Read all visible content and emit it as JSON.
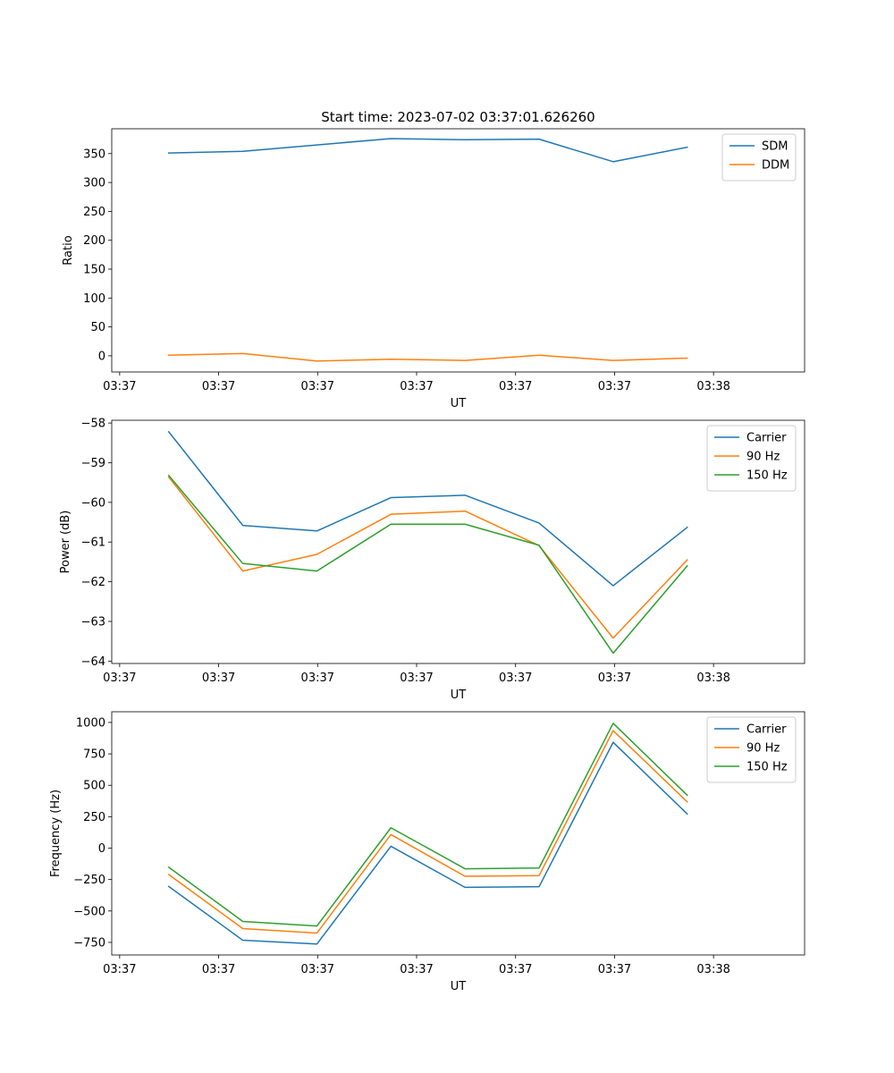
{
  "chart_data": [
    {
      "type": "line",
      "title": "Start time: 2023-07-02 03:37:01.626260",
      "xlabel": "UT",
      "ylabel": "Ratio",
      "x_tick_labels": [
        "03:37",
        "03:37",
        "03:37",
        "03:37",
        "03:37",
        "03:37",
        "03:38"
      ],
      "xlim": [
        0,
        6.08
      ],
      "x": [
        0.5,
        1.15,
        1.8,
        2.45,
        3.1,
        3.75,
        4.4,
        5.05
      ],
      "ylim": [
        -28,
        393
      ],
      "yticks": [
        0,
        50,
        100,
        150,
        200,
        250,
        300,
        350
      ],
      "legend": "top-right",
      "series": [
        {
          "name": "SDM",
          "color": "#1f77b4",
          "values": [
            351,
            354,
            365,
            376,
            374,
            375,
            336,
            361
          ]
        },
        {
          "name": "DDM",
          "color": "#ff7f0e",
          "values": [
            1,
            4,
            -9,
            -6,
            -8,
            1,
            -8,
            -4
          ]
        }
      ]
    },
    {
      "type": "line",
      "title": "",
      "xlabel": "UT",
      "ylabel": "Power (dB)",
      "x_tick_labels": [
        "03:37",
        "03:37",
        "03:37",
        "03:37",
        "03:37",
        "03:37",
        "03:38"
      ],
      "xlim": [
        0,
        6.08
      ],
      "x": [
        0.5,
        1.15,
        1.8,
        2.45,
        3.1,
        3.75,
        4.4,
        5.05
      ],
      "ylim": [
        -64.06,
        -57.93
      ],
      "yticks": [
        -64,
        -63,
        -62,
        -61,
        -60,
        -59,
        -58
      ],
      "legend": "top-right",
      "series": [
        {
          "name": "Carrier",
          "color": "#1f77b4",
          "values": [
            -58.22,
            -60.58,
            -60.72,
            -59.88,
            -59.82,
            -60.52,
            -62.1,
            -60.63
          ]
        },
        {
          "name": "90 Hz",
          "color": "#ff7f0e",
          "values": [
            -59.36,
            -61.73,
            -61.31,
            -60.3,
            -60.22,
            -61.09,
            -63.42,
            -61.45
          ]
        },
        {
          "name": "150 Hz",
          "color": "#2ca02c",
          "values": [
            -59.32,
            -61.54,
            -61.73,
            -60.55,
            -60.55,
            -61.08,
            -63.8,
            -61.6
          ]
        }
      ]
    },
    {
      "type": "line",
      "title": "",
      "xlabel": "UT",
      "ylabel": "Frequency (Hz)",
      "x_tick_labels": [
        "03:37",
        "03:37",
        "03:37",
        "03:37",
        "03:37",
        "03:37",
        "03:38"
      ],
      "xlim": [
        0,
        6.08
      ],
      "x": [
        0.5,
        1.15,
        1.8,
        2.45,
        3.1,
        3.75,
        4.4,
        5.05
      ],
      "ylim": [
        -850,
        1085
      ],
      "yticks": [
        -750,
        -500,
        -250,
        0,
        250,
        500,
        750,
        1000
      ],
      "legend": "top-right",
      "series": [
        {
          "name": "Carrier",
          "color": "#1f77b4",
          "values": [
            -305,
            -733,
            -763,
            15,
            -312,
            -307,
            842,
            272
          ]
        },
        {
          "name": "90 Hz",
          "color": "#ff7f0e",
          "values": [
            -210,
            -640,
            -676,
            108,
            -224,
            -219,
            935,
            368
          ]
        },
        {
          "name": "150 Hz",
          "color": "#2ca02c",
          "values": [
            -152,
            -583,
            -620,
            162,
            -164,
            -158,
            993,
            421
          ]
        }
      ]
    }
  ]
}
